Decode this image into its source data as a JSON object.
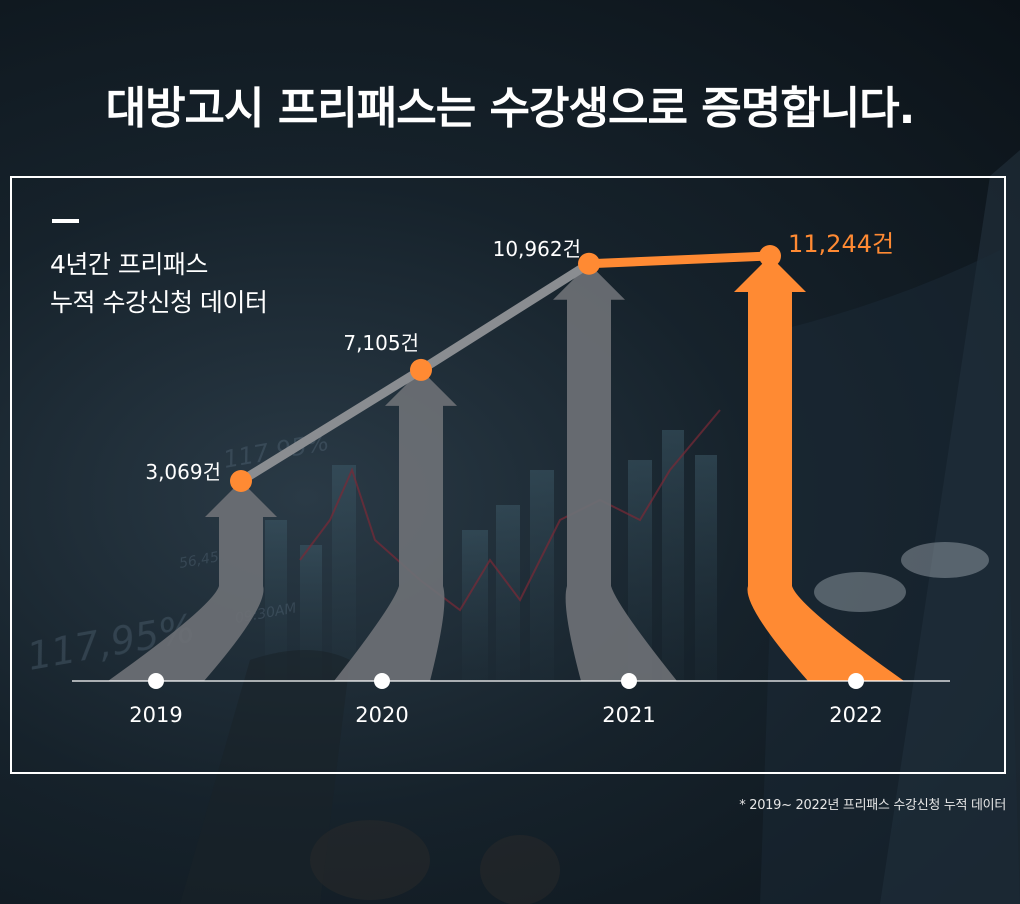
{
  "headline": "대방고시 프리패스는 수강생으로 증명합니다.",
  "subtitle": {
    "line1": "4년간 프리패스",
    "line2": "누적 수강신청 데이터"
  },
  "footnote": "* 2019~ 2022년 프리패스 수강신청 누적 데이터",
  "colors": {
    "accent": "#ff8a33",
    "gray_arrow": "#6d7075",
    "line_gray": "#8a8d91",
    "frame": "#ffffff"
  },
  "chart_data": {
    "type": "line",
    "categories": [
      "2019",
      "2020",
      "2021",
      "2022"
    ],
    "values": [
      3069,
      7105,
      10962,
      11244
    ],
    "value_labels": [
      "3,069건",
      "7,105건",
      "10,962건",
      "11,244건"
    ],
    "highlight_index": 3,
    "title": "",
    "xlabel": "",
    "ylabel": "",
    "grid": false,
    "legend": "none"
  }
}
